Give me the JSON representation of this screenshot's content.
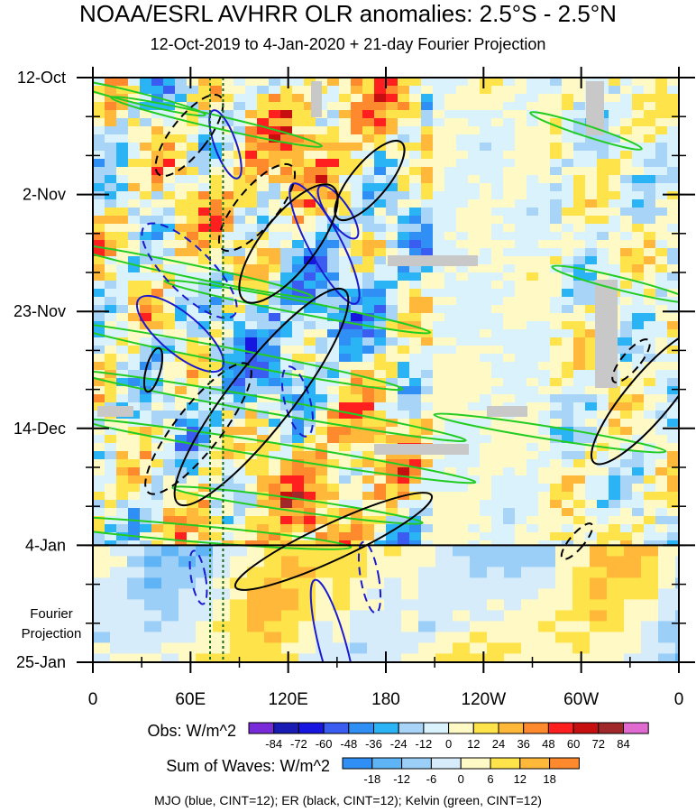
{
  "chart_data": {
    "type": "heatmap",
    "title": "NOAA/ESRL AVHRR OLR anomalies: 2.5°S - 2.5°N",
    "subtitle": "12-Oct-2019 to 4-Jan-2020 + 21-day Fourier Projection",
    "y_ticks": [
      "12-Oct",
      "2-Nov",
      "23-Nov",
      "14-Dec",
      "4-Jan",
      "25-Jan"
    ],
    "y_range": [
      "12-Oct-2019",
      "25-Jan-2020"
    ],
    "observation_end": "4-Jan",
    "projection_label": [
      "Fourier",
      "Projection"
    ],
    "x_ticks": [
      "0",
      "60E",
      "120E",
      "180",
      "120W",
      "60W",
      "0"
    ],
    "x_range_lon": [
      0,
      360
    ],
    "reference_lines_lon": [
      72,
      80
    ],
    "obs_colorbar": {
      "label": "Obs: W/m^2",
      "levels": [
        -84,
        -72,
        -60,
        -48,
        -36,
        -24,
        -12,
        0,
        12,
        24,
        36,
        48,
        60,
        72,
        84
      ],
      "colors": [
        "#7a2bd9",
        "#1a1ab5",
        "#1616e0",
        "#3a5cf0",
        "#2f8ff5",
        "#2bb4f5",
        "#a8d4f7",
        "#d9f2fc",
        "#fff9c6",
        "#ffe34a",
        "#ffb83a",
        "#ff8a2e",
        "#ff1f1f",
        "#c80f0f",
        "#a0282a",
        "#e06ad0"
      ]
    },
    "waves_colorbar": {
      "label": "Sum of Waves: W/m^2",
      "levels": [
        -18,
        -12,
        -6,
        0,
        6,
        12,
        18
      ],
      "colors": [
        "#2f8ff5",
        "#5fb4f6",
        "#9ccff7",
        "#d6ecfb",
        "#fff9c6",
        "#ffe34a",
        "#ffb83a",
        "#ff8a2e"
      ]
    },
    "legend_note": "MJO (blue, CINT=12); ER (black, CINT=12); Kelvin (green, CINT=12)",
    "wave_series": [
      {
        "name": "MJO",
        "color": "#1a1ad0",
        "cint": 12
      },
      {
        "name": "ER",
        "color": "#000000",
        "cint": 12
      },
      {
        "name": "Kelvin",
        "color": "#22cc22",
        "cint": 12
      }
    ]
  }
}
